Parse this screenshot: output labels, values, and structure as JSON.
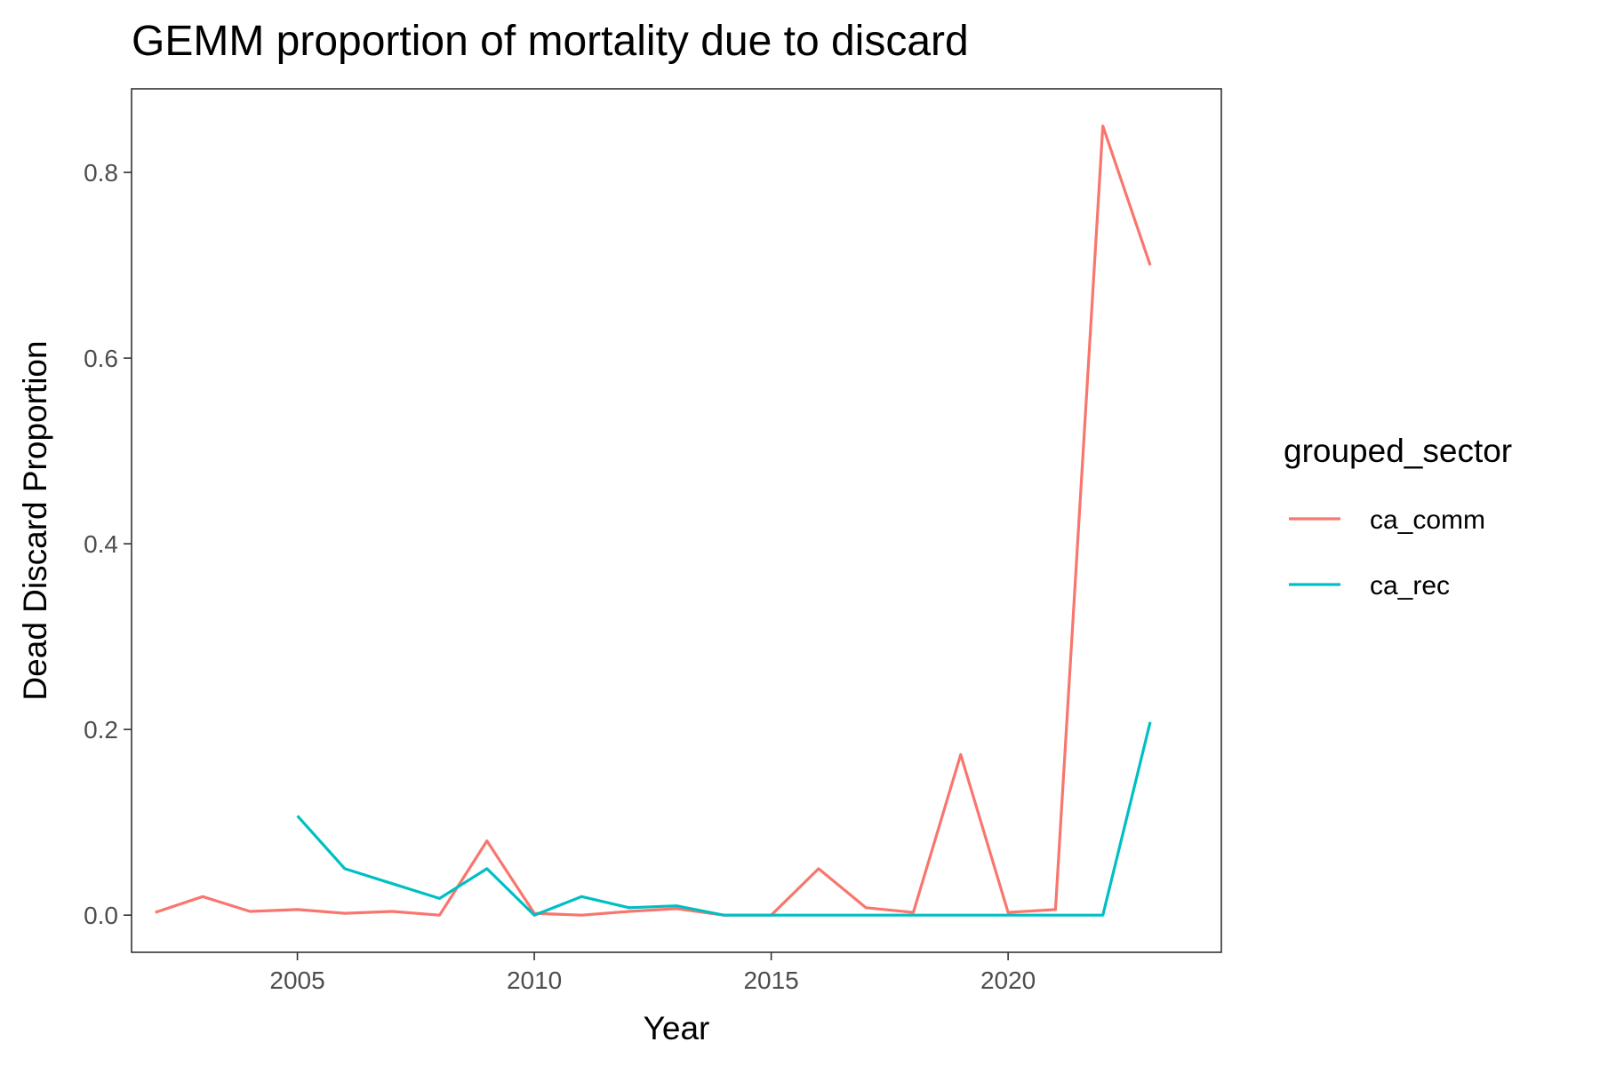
{
  "chart_data": {
    "type": "line",
    "title": "GEMM proportion of mortality due to discard",
    "xlabel": "Year",
    "ylabel": "Dead Discard Proportion",
    "xlim": [
      2001.5,
      2024.5
    ],
    "ylim": [
      -0.04,
      0.89
    ],
    "x_ticks": [
      2005,
      2010,
      2015,
      2020
    ],
    "x_tick_labels": [
      "2005",
      "2010",
      "2015",
      "2020"
    ],
    "y_ticks": [
      0.0,
      0.2,
      0.4,
      0.6,
      0.8
    ],
    "y_tick_labels": [
      "0.0",
      "0.2",
      "0.4",
      "0.6",
      "0.8"
    ],
    "grid": false,
    "legend": {
      "title": "grouped_sector",
      "placement": "right"
    },
    "series": [
      {
        "name": "ca_comm",
        "color": "#F8766D",
        "x": [
          2002,
          2003,
          2004,
          2005,
          2006,
          2007,
          2008,
          2009,
          2010,
          2011,
          2012,
          2013,
          2014,
          2015,
          2016,
          2017,
          2018,
          2019,
          2020,
          2021,
          2022,
          2023
        ],
        "values": [
          0.003,
          0.02,
          0.004,
          0.006,
          0.002,
          0.004,
          0.0,
          0.08,
          0.002,
          0.0,
          0.004,
          0.007,
          0.0,
          0.0,
          0.05,
          0.008,
          0.003,
          0.173,
          0.003,
          0.006,
          0.85,
          0.7
        ]
      },
      {
        "name": "ca_rec",
        "color": "#00BFC4",
        "x": [
          2005,
          2006,
          2007,
          2008,
          2009,
          2010,
          2011,
          2012,
          2013,
          2014,
          2015,
          2016,
          2017,
          2018,
          2019,
          2020,
          2021,
          2022,
          2023
        ],
        "values": [
          0.107,
          0.05,
          0.034,
          0.018,
          0.05,
          0.0,
          0.02,
          0.008,
          0.01,
          0.0,
          0.0,
          0.0,
          0.0,
          0.0,
          0.0,
          0.0,
          0.0,
          0.0,
          0.208
        ]
      }
    ]
  }
}
